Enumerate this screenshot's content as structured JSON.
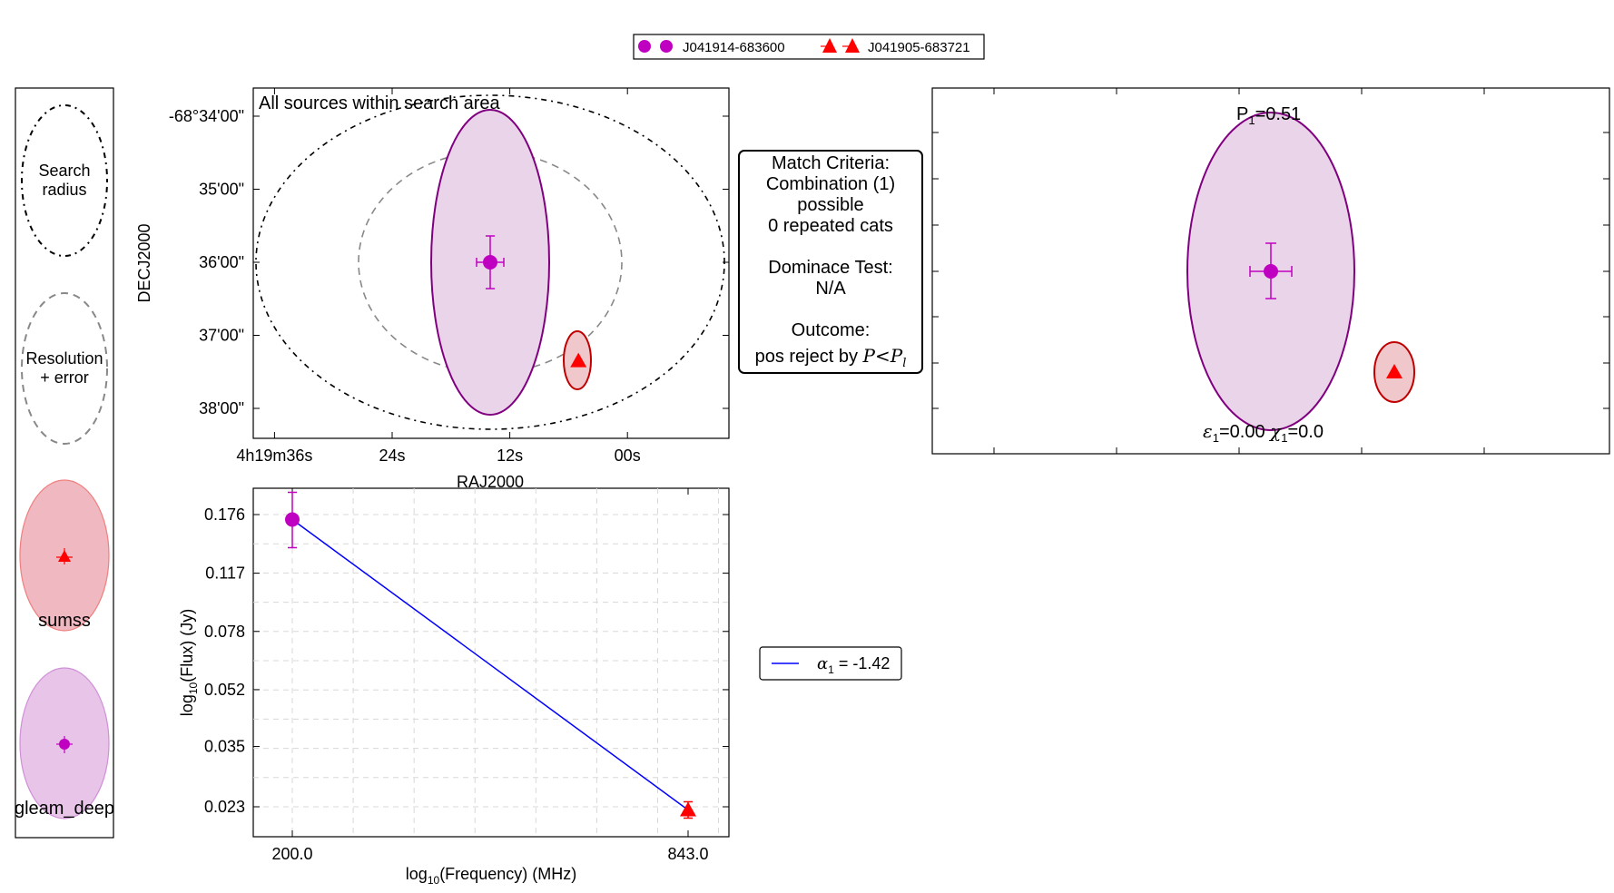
{
  "colors": {
    "gleam": "#c000c0",
    "sumss": "#ff0000",
    "fit": "#0000ff",
    "ellipse_gleam_fill": "#e8d0e8",
    "ellipse_gleam_edge": "#800080",
    "ellipse_sumss_fill": "#f0c8cc",
    "ellipse_sumss_edge": "#c00000"
  },
  "top_legend": {
    "entries": [
      {
        "name": "J041914-683600",
        "marker": "circle",
        "color": "#c000c0"
      },
      {
        "name": "J041905-683721",
        "marker": "triangle",
        "color": "#ff0000"
      }
    ]
  },
  "side_legend": {
    "search_label": [
      "Search",
      "radius"
    ],
    "resolution_label": [
      "Resolution",
      "+ error"
    ],
    "catalogs": [
      "sumss",
      "gleam_deep"
    ]
  },
  "match_box": {
    "lines": [
      "Match Criteria:",
      "Combination (1)",
      "possible",
      "0 repeated cats",
      "",
      "Dominace Test:",
      "N/A",
      "",
      "Outcome:"
    ],
    "outcome_prefix": "pos reject by ",
    "outcome_math": "P<Pl"
  },
  "fit_legend": {
    "label": "α1 = -1.42"
  },
  "chart_data": [
    {
      "type": "scatter",
      "title": "All sources within search area",
      "xlabel": "RAJ2000",
      "ylabel": "DECJ2000",
      "xticks": [
        "4h19m36s",
        "24s",
        "12s",
        "00s"
      ],
      "yticks": [
        "-68°34'00\"",
        "35'00\"",
        "36'00\"",
        "37'00\"",
        "38'00\""
      ],
      "series": [
        {
          "name": "J041914-683600",
          "catalog": "gleam_deep",
          "ra_s": 14.0,
          "dec_min": 36.0
        },
        {
          "name": "J041905-683721",
          "catalog": "sumss",
          "ra_s": 5.0,
          "dec_min": 37.35
        }
      ]
    },
    {
      "type": "scatter",
      "annotations": [
        "P1=0.51",
        "ε1=0.00 χ1=0.0"
      ]
    },
    {
      "type": "line",
      "xlabel": "log10(Frequency) (MHz)",
      "ylabel": "log10(Flux) (Jy)",
      "x_log": true,
      "y_log": true,
      "xticks": [
        "200.0",
        "843.0"
      ],
      "yticks": [
        "0.176",
        "0.117",
        "0.078",
        "0.052",
        "0.035",
        "0.023"
      ],
      "grid": true,
      "points": [
        {
          "freq": 200.0,
          "flux": 0.17,
          "catalog": "gleam_deep"
        },
        {
          "freq": 843.0,
          "flux": 0.0225,
          "catalog": "sumss"
        }
      ],
      "fit": {
        "name": "α1 = -1.42",
        "alpha": -1.42
      }
    }
  ]
}
